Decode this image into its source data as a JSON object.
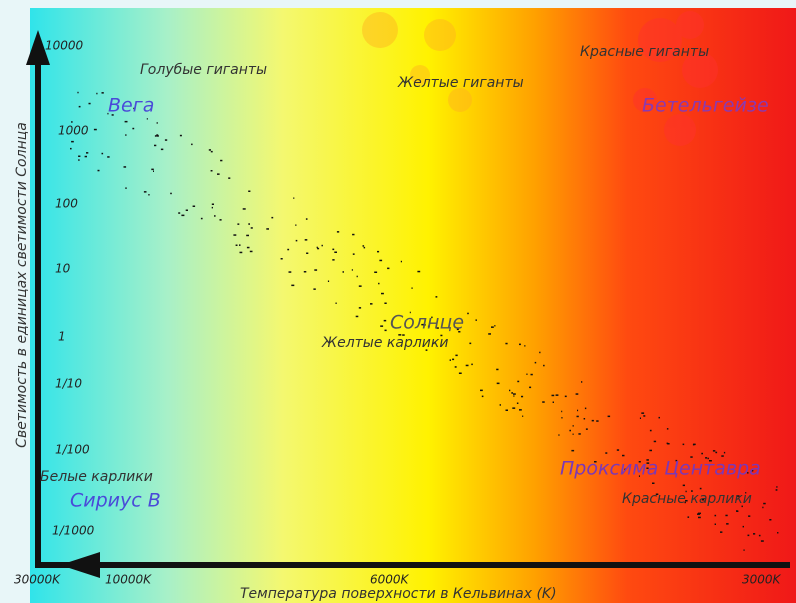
{
  "y_axis_label": "Светимость в единицах светимости Солнца",
  "x_axis_label": "Температура поверхности в Кельвинах (K)",
  "y_ticks": [
    "10000",
    "1000",
    "100",
    "10",
    "1",
    "1/10",
    "1/100",
    "1/1000"
  ],
  "x_ticks": [
    "30000K",
    "10000K",
    "6000K",
    "3000K"
  ],
  "regions": {
    "blue_giants": "Голубые гиганты",
    "yellow_giants": "Желтые гиганты",
    "red_giants": "Красные гиганты",
    "yellow_dwarfs": "Желтые карлики",
    "white_dwarfs": "Белые карлики",
    "red_dwarfs": "Красные карлики"
  },
  "stars": {
    "vega": "Вега",
    "betelgeuse": "Бетельгейзе",
    "sun": "Солнце",
    "sirius_b": "Сириус B",
    "proxima": "Проксима Центавра"
  }
}
